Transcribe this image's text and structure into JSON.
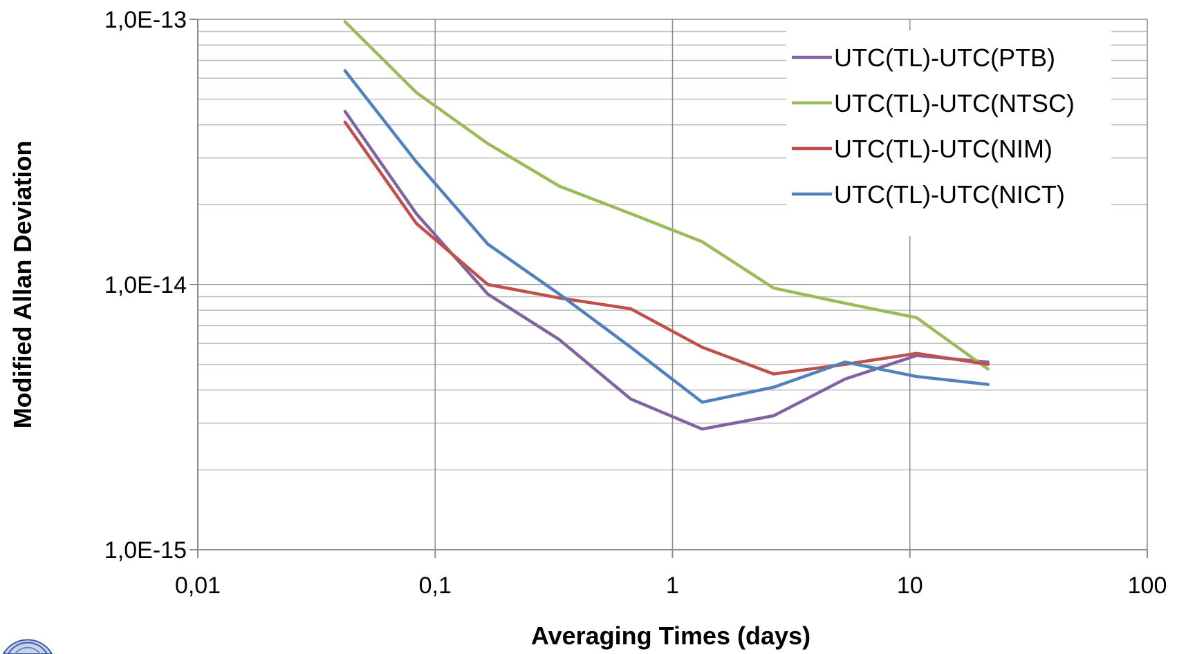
{
  "chart_data": {
    "type": "line",
    "xlabel": "Averaging Times (days)",
    "ylabel": "Modified Allan Deviation",
    "x_scale": "log",
    "y_scale": "log",
    "xlim": [
      0.01,
      100
    ],
    "ylim": [
      1e-15,
      1e-13
    ],
    "x_ticks": [
      0.01,
      0.1,
      1,
      10,
      100
    ],
    "x_tick_labels": [
      "0,01",
      "0,1",
      "1",
      "10",
      "100"
    ],
    "y_ticks": [
      1e-15,
      1e-14,
      1e-13
    ],
    "y_tick_labels": [
      "1,0E-15",
      "1,0E-14",
      "1,0E-13"
    ],
    "grid": true,
    "legend_position": "top-right",
    "series": [
      {
        "name": "UTC(TL)-UTC(PTB)",
        "color": "#8064A2",
        "x": [
          0.0417,
          0.0833,
          0.1667,
          0.3333,
          0.6667,
          1.3333,
          2.6667,
          5.3333,
          10.6667,
          21.3333
        ],
        "y": [
          4.5e-14,
          1.85e-14,
          9.2e-15,
          6.2e-15,
          3.7e-15,
          2.85e-15,
          3.2e-15,
          4.4e-15,
          5.4e-15,
          5.1e-15
        ]
      },
      {
        "name": "UTC(TL)-UTC(NTSC)",
        "color": "#9BBB59",
        "x": [
          0.0417,
          0.0833,
          0.1667,
          0.3333,
          0.6667,
          1.3333,
          2.6667,
          5.3333,
          10.6667,
          21.3333
        ],
        "y": [
          9.8e-14,
          5.3e-14,
          3.4e-14,
          2.35e-14,
          1.85e-14,
          1.45e-14,
          9.7e-15,
          8.5e-15,
          7.5e-15,
          4.8e-15
        ]
      },
      {
        "name": "UTC(TL)-UTC(NIM)",
        "color": "#C0504D",
        "x": [
          0.0417,
          0.0833,
          0.1667,
          0.3333,
          0.6667,
          1.3333,
          2.6667,
          5.3333,
          10.6667,
          21.3333
        ],
        "y": [
          4.1e-14,
          1.7e-14,
          1e-14,
          8.9e-15,
          8.1e-15,
          5.8e-15,
          4.6e-15,
          5e-15,
          5.5e-15,
          5e-15
        ]
      },
      {
        "name": "UTC(TL)-UTC(NICT)",
        "color": "#4F81BD",
        "x": [
          0.0417,
          0.0833,
          0.1667,
          0.3333,
          0.6667,
          1.3333,
          2.6667,
          5.3333,
          10.6667,
          21.3333
        ],
        "y": [
          6.4e-14,
          2.9e-14,
          1.42e-14,
          9.2e-15,
          5.8e-15,
          3.6e-15,
          4.1e-15,
          5.1e-15,
          4.5e-15,
          4.2e-15
        ]
      }
    ]
  }
}
